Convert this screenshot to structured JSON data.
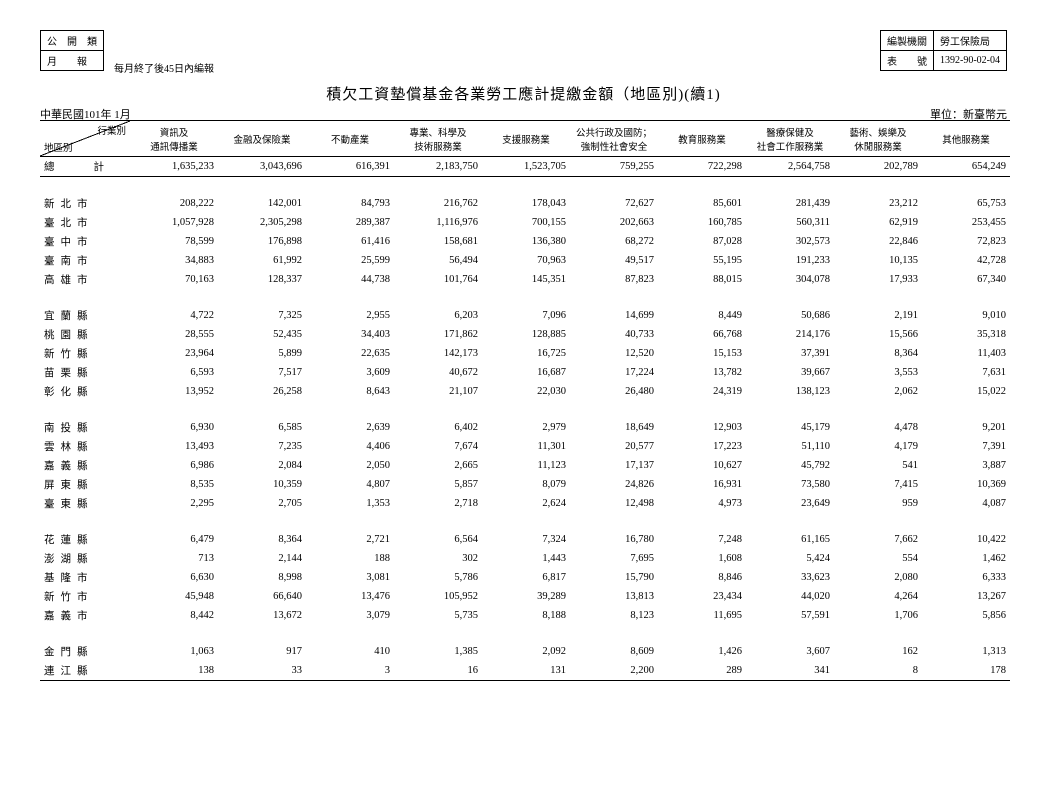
{
  "meta": {
    "left_top_header": "公　開　類",
    "left_row2_label": "月　　報",
    "left_row2_text": "每月終了後45日內編報",
    "right_r1_label": "編製機關",
    "right_r1_val": "勞工保險局",
    "right_r2_label": "表　　號",
    "right_r2_val": "1392-90-02-04",
    "title": "積欠工資墊償基金各業勞工應計提繳金額（地區別)(續1)",
    "period": "中華民國101年 1月",
    "unit": "單位：新臺幣元",
    "diag_top": "行業別",
    "diag_bottom": "地區別"
  },
  "columns": [
    "資訊及\n通訊傳播業",
    "金融及保險業",
    "不動產業",
    "專業、科學及\n技術服務業",
    "支援服務業",
    "公共行政及國防；\n強制性社會安全",
    "教育服務業",
    "醫療保健及\n社會工作服務業",
    "藝術、娛樂及\n休閒服務業",
    "其他服務業"
  ],
  "total_label": "總　　計",
  "total_values": [
    "1,635,233",
    "3,043,696",
    "616,391",
    "2,183,750",
    "1,523,705",
    "759,255",
    "722,298",
    "2,564,758",
    "202,789",
    "654,249"
  ],
  "groups": [
    {
      "rows": [
        {
          "label": "新北市",
          "v": [
            "208,222",
            "142,001",
            "84,793",
            "216,762",
            "178,043",
            "72,627",
            "85,601",
            "281,439",
            "23,212",
            "65,753"
          ]
        },
        {
          "label": "臺北市",
          "v": [
            "1,057,928",
            "2,305,298",
            "289,387",
            "1,116,976",
            "700,155",
            "202,663",
            "160,785",
            "560,311",
            "62,919",
            "253,455"
          ]
        },
        {
          "label": "臺中市",
          "v": [
            "78,599",
            "176,898",
            "61,416",
            "158,681",
            "136,380",
            "68,272",
            "87,028",
            "302,573",
            "22,846",
            "72,823"
          ]
        },
        {
          "label": "臺南市",
          "v": [
            "34,883",
            "61,992",
            "25,599",
            "56,494",
            "70,963",
            "49,517",
            "55,195",
            "191,233",
            "10,135",
            "42,728"
          ]
        },
        {
          "label": "高雄市",
          "v": [
            "70,163",
            "128,337",
            "44,738",
            "101,764",
            "145,351",
            "87,823",
            "88,015",
            "304,078",
            "17,933",
            "67,340"
          ]
        }
      ]
    },
    {
      "rows": [
        {
          "label": "宜蘭縣",
          "v": [
            "4,722",
            "7,325",
            "2,955",
            "6,203",
            "7,096",
            "14,699",
            "8,449",
            "50,686",
            "2,191",
            "9,010"
          ]
        },
        {
          "label": "桃園縣",
          "v": [
            "28,555",
            "52,435",
            "34,403",
            "171,862",
            "128,885",
            "40,733",
            "66,768",
            "214,176",
            "15,566",
            "35,318"
          ]
        },
        {
          "label": "新竹縣",
          "v": [
            "23,964",
            "5,899",
            "22,635",
            "142,173",
            "16,725",
            "12,520",
            "15,153",
            "37,391",
            "8,364",
            "11,403"
          ]
        },
        {
          "label": "苗栗縣",
          "v": [
            "6,593",
            "7,517",
            "3,609",
            "40,672",
            "16,687",
            "17,224",
            "13,782",
            "39,667",
            "3,553",
            "7,631"
          ]
        },
        {
          "label": "彰化縣",
          "v": [
            "13,952",
            "26,258",
            "8,643",
            "21,107",
            "22,030",
            "26,480",
            "24,319",
            "138,123",
            "2,062",
            "15,022"
          ]
        }
      ]
    },
    {
      "rows": [
        {
          "label": "南投縣",
          "v": [
            "6,930",
            "6,585",
            "2,639",
            "6,402",
            "2,979",
            "18,649",
            "12,903",
            "45,179",
            "4,478",
            "9,201"
          ]
        },
        {
          "label": "雲林縣",
          "v": [
            "13,493",
            "7,235",
            "4,406",
            "7,674",
            "11,301",
            "20,577",
            "17,223",
            "51,110",
            "4,179",
            "7,391"
          ]
        },
        {
          "label": "嘉義縣",
          "v": [
            "6,986",
            "2,084",
            "2,050",
            "2,665",
            "11,123",
            "17,137",
            "10,627",
            "45,792",
            "541",
            "3,887"
          ]
        },
        {
          "label": "屏東縣",
          "v": [
            "8,535",
            "10,359",
            "4,807",
            "5,857",
            "8,079",
            "24,826",
            "16,931",
            "73,580",
            "7,415",
            "10,369"
          ]
        },
        {
          "label": "臺東縣",
          "v": [
            "2,295",
            "2,705",
            "1,353",
            "2,718",
            "2,624",
            "12,498",
            "4,973",
            "23,649",
            "959",
            "4,087"
          ]
        }
      ]
    },
    {
      "rows": [
        {
          "label": "花蓮縣",
          "v": [
            "6,479",
            "8,364",
            "2,721",
            "6,564",
            "7,324",
            "16,780",
            "7,248",
            "61,165",
            "7,662",
            "10,422"
          ]
        },
        {
          "label": "澎湖縣",
          "v": [
            "713",
            "2,144",
            "188",
            "302",
            "1,443",
            "7,695",
            "1,608",
            "5,424",
            "554",
            "1,462"
          ]
        },
        {
          "label": "基隆市",
          "v": [
            "6,630",
            "8,998",
            "3,081",
            "5,786",
            "6,817",
            "15,790",
            "8,846",
            "33,623",
            "2,080",
            "6,333"
          ]
        },
        {
          "label": "新竹市",
          "v": [
            "45,948",
            "66,640",
            "13,476",
            "105,952",
            "39,289",
            "13,813",
            "23,434",
            "44,020",
            "4,264",
            "13,267"
          ]
        },
        {
          "label": "嘉義市",
          "v": [
            "8,442",
            "13,672",
            "3,079",
            "5,735",
            "8,188",
            "8,123",
            "11,695",
            "57,591",
            "1,706",
            "5,856"
          ]
        }
      ]
    },
    {
      "rows": [
        {
          "label": "金門縣",
          "v": [
            "1,063",
            "917",
            "410",
            "1,385",
            "2,092",
            "8,609",
            "1,426",
            "3,607",
            "162",
            "1,313"
          ]
        },
        {
          "label": "連江縣",
          "v": [
            "138",
            "33",
            "3",
            "16",
            "131",
            "2,200",
            "289",
            "341",
            "8",
            "178"
          ]
        }
      ]
    }
  ]
}
